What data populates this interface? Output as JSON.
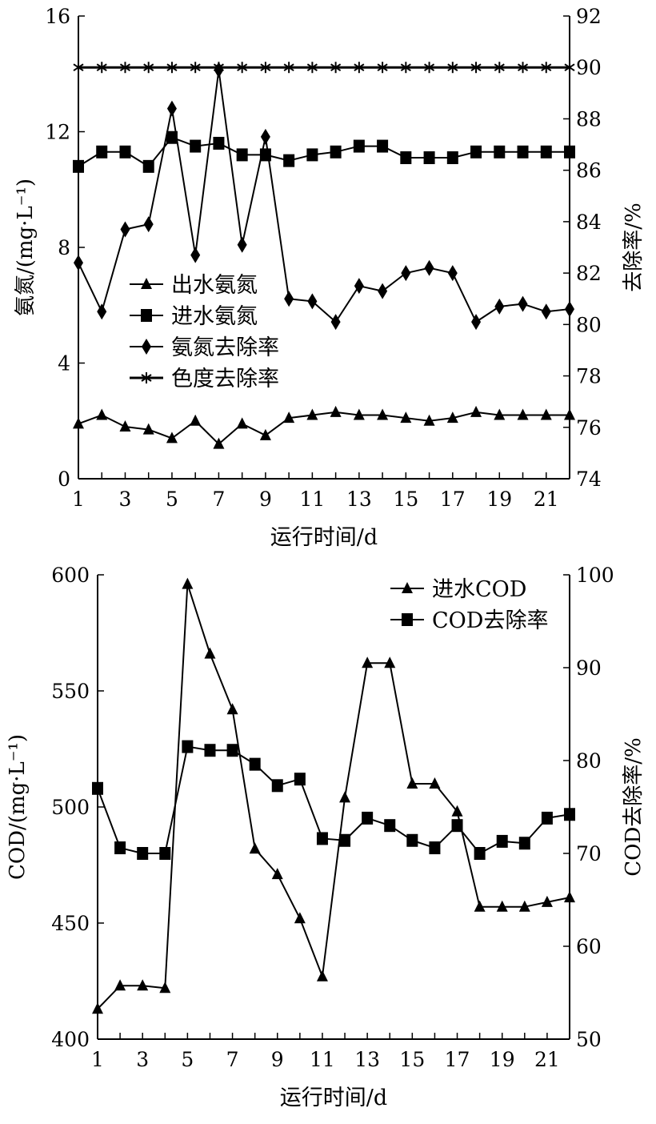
{
  "chart_data": [
    {
      "type": "line",
      "xlabel": "运行时间/d",
      "ylabel_left": "氨氮/(mg·L⁻¹)",
      "ylabel_right": "去除率/%",
      "x": [
        1,
        2,
        3,
        4,
        5,
        6,
        7,
        8,
        9,
        10,
        11,
        12,
        13,
        14,
        15,
        16,
        17,
        18,
        19,
        20,
        21,
        22
      ],
      "xticks": [
        "1",
        "3",
        "5",
        "7",
        "9",
        "11",
        "13",
        "15",
        "17",
        "19",
        "21"
      ],
      "xlim": [
        1,
        22
      ],
      "ylim_left": [
        0,
        16
      ],
      "yticks_left": [
        "0",
        "4",
        "8",
        "12",
        "16"
      ],
      "ylim_right": [
        74,
        92
      ],
      "yticks_right": [
        "74",
        "76",
        "78",
        "80",
        "82",
        "84",
        "86",
        "88",
        "90",
        "92"
      ],
      "legend_position": "center-left",
      "series": [
        {
          "name": "出水氨氮",
          "axis": "left",
          "marker": "triangle",
          "values": [
            1.9,
            2.2,
            1.8,
            1.7,
            1.4,
            2.0,
            1.2,
            1.9,
            1.5,
            2.1,
            2.2,
            2.3,
            2.2,
            2.2,
            2.1,
            2.0,
            2.1,
            2.3,
            2.2,
            2.2,
            2.2,
            2.2
          ]
        },
        {
          "name": "进水氨氮",
          "axis": "left",
          "marker": "square",
          "values": [
            10.8,
            11.3,
            11.3,
            10.8,
            11.8,
            11.5,
            11.6,
            11.2,
            11.2,
            11.0,
            11.2,
            11.3,
            11.5,
            11.5,
            11.1,
            11.1,
            11.1,
            11.3,
            11.3,
            11.3,
            11.3,
            11.3
          ]
        },
        {
          "name": "氨氮去除率",
          "axis": "right",
          "marker": "diamond",
          "values": [
            82.4,
            80.5,
            83.7,
            83.9,
            88.4,
            82.7,
            89.9,
            83.1,
            87.3,
            81.0,
            80.9,
            80.1,
            81.5,
            81.3,
            82.0,
            82.2,
            82.0,
            80.1,
            80.7,
            80.8,
            80.5,
            80.6
          ]
        },
        {
          "name": "色度去除率",
          "axis": "right",
          "marker": "asterisk",
          "values": [
            90,
            90,
            90,
            90,
            90,
            90,
            90,
            90,
            90,
            90,
            90,
            90,
            90,
            90,
            90,
            90,
            90,
            90,
            90,
            90,
            90,
            90
          ]
        }
      ]
    },
    {
      "type": "line",
      "xlabel": "运行时间/d",
      "ylabel_left": "COD/(mg·L⁻¹)",
      "ylabel_right": "COD去除率/%",
      "x": [
        1,
        2,
        3,
        4,
        5,
        6,
        7,
        8,
        9,
        10,
        11,
        12,
        13,
        14,
        15,
        16,
        17,
        18,
        19,
        20,
        21,
        22
      ],
      "xticks": [
        "1",
        "3",
        "5",
        "7",
        "9",
        "11",
        "13",
        "15",
        "17",
        "19",
        "21"
      ],
      "xlim": [
        1,
        22
      ],
      "ylim_left": [
        400,
        600
      ],
      "yticks_left": [
        "400",
        "450",
        "500",
        "550",
        "600"
      ],
      "ylim_right": [
        50,
        100
      ],
      "yticks_right": [
        "50",
        "60",
        "70",
        "80",
        "90",
        "100"
      ],
      "legend_position": "top-right",
      "series": [
        {
          "name": "进水COD",
          "axis": "left",
          "marker": "triangle",
          "values": [
            413,
            423,
            423,
            422,
            596,
            566,
            542,
            482,
            471,
            452,
            427,
            504,
            562,
            562,
            510,
            510,
            498,
            457,
            457,
            457,
            459,
            461
          ]
        },
        {
          "name": "COD去除率",
          "axis": "right",
          "marker": "square",
          "values": [
            77.0,
            70.6,
            70.0,
            70.0,
            81.5,
            81.1,
            81.1,
            79.6,
            77.3,
            78.0,
            71.6,
            71.4,
            73.8,
            73.0,
            71.4,
            70.6,
            73.0,
            70.0,
            71.3,
            71.1,
            73.8,
            74.2
          ]
        }
      ]
    }
  ]
}
